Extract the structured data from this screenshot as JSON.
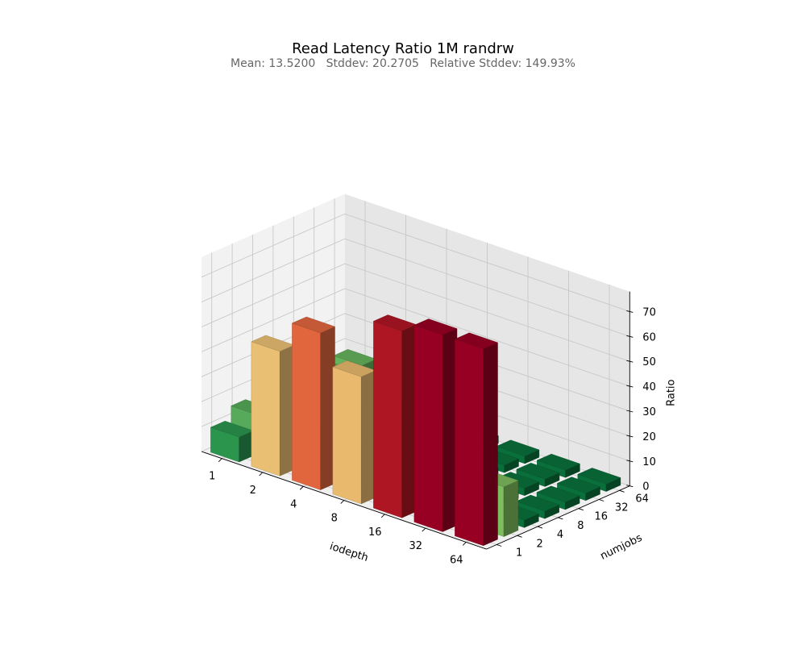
{
  "chart_data": {
    "type": "bar3d",
    "title": "Read Latency Ratio 1M randrw",
    "subtitle": "Mean: 13.5200   Stddev: 20.2705   Relative Stddev: 149.93%",
    "xlabel": "iodepth",
    "ylabel": "numjobs",
    "zlabel": "Ratio",
    "x_categories": [
      "1",
      "2",
      "4",
      "8",
      "16",
      "32",
      "64"
    ],
    "y_categories": [
      "1",
      "2",
      "4",
      "8",
      "16",
      "32",
      "64"
    ],
    "z_ticks": [
      0,
      10,
      20,
      30,
      40,
      50,
      60,
      70
    ],
    "zlim": [
      0,
      78
    ],
    "grid": true,
    "colormap": "RdYlGn_r",
    "values": [
      [
        10,
        15,
        16,
        16,
        16,
        16,
        17
      ],
      [
        50,
        10,
        4,
        4,
        4,
        4,
        4
      ],
      [
        63,
        4,
        3,
        3,
        3,
        3,
        3
      ],
      [
        51,
        3,
        3,
        3,
        3,
        3,
        3
      ],
      [
        75,
        3,
        3,
        3,
        3,
        3,
        3
      ],
      [
        79,
        3,
        3,
        3,
        3,
        3,
        3
      ],
      [
        79,
        20,
        3,
        3,
        3,
        3,
        3
      ]
    ]
  }
}
